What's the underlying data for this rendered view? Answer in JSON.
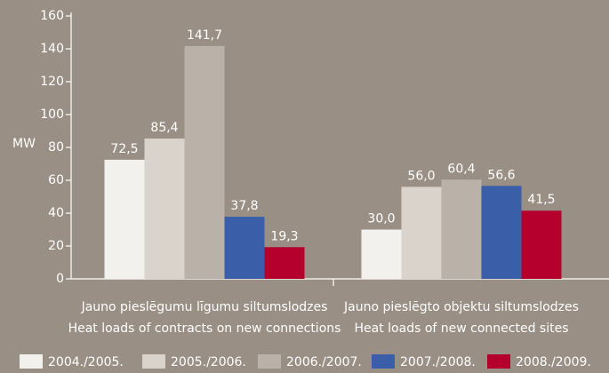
{
  "chart_data": {
    "type": "bar",
    "y_label": "MW",
    "categories": [
      [
        "Jauno pieslēgumu līgumu siltumslodzes",
        "Heat loads of contracts on new connections"
      ],
      [
        "Jauno pieslēgto objektu siltumslodzes",
        "Heat loads of new connected sites"
      ]
    ],
    "series": [
      {
        "name": "2004./2005.",
        "color": "#f3f1ee",
        "values": [
          72.5,
          30.0
        ],
        "value_labels": [
          "72,5",
          "30,0"
        ]
      },
      {
        "name": "2005./2006.",
        "color": "#d9d3cc",
        "values": [
          85.4,
          56.0
        ],
        "value_labels": [
          "85,4",
          "56,0"
        ]
      },
      {
        "name": "2006./2007.",
        "color": "#bab1a8",
        "values": [
          141.7,
          60.4
        ],
        "value_labels": [
          "141,7",
          "60,4"
        ]
      },
      {
        "name": "2007./2008.",
        "color": "#3a5ea8",
        "values": [
          37.8,
          56.6
        ],
        "value_labels": [
          "37,8",
          "56,6"
        ]
      },
      {
        "name": "2008./2009.",
        "color": "#b5002d",
        "values": [
          19.3,
          41.5
        ],
        "value_labels": [
          "19,3",
          "41,5"
        ]
      }
    ],
    "ylim": [
      0,
      160
    ],
    "yticks": [
      0,
      20,
      40,
      60,
      80,
      100,
      120,
      140,
      160
    ]
  }
}
